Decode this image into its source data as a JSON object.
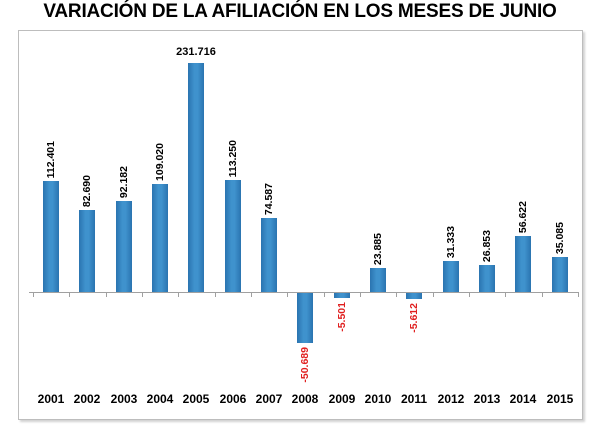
{
  "page": {
    "title": "VARIACIÓN DE LA AFILIACIÓN EN LOS MESES DE JUNIO"
  },
  "chart_data": {
    "type": "bar",
    "title": "VARIACIÓN DE LA AFILIACIÓN EN LOS MESES DE JUNIO",
    "categories": [
      "2001",
      "2002",
      "2003",
      "2004",
      "2005",
      "2006",
      "2007",
      "2008",
      "2009",
      "2010",
      "2011",
      "2012",
      "2013",
      "2014",
      "2015"
    ],
    "values": [
      112401,
      82690,
      92182,
      109020,
      231716,
      113250,
      74587,
      -50689,
      -5501,
      23885,
      -5612,
      31333,
      26853,
      56622,
      35085
    ],
    "data_labels": [
      "112.401",
      "82.690",
      "92.182",
      "109.020",
      "231.716",
      "113.250",
      "74.587",
      "-50.689",
      "-5.501",
      "23.885",
      "-5.612",
      "31.333",
      "26.853",
      "56.622",
      "35.085"
    ],
    "xlabel": "",
    "ylabel": "",
    "ylim": [
      -60000,
      240000
    ],
    "grid": false,
    "legend": false,
    "bar_color": "#2e81be",
    "positive_label_color": "#000000",
    "negative_label_color": "#e02020",
    "axis_color": "#a0a0a0"
  }
}
